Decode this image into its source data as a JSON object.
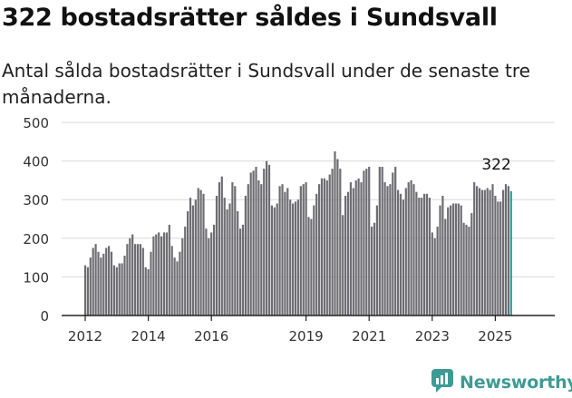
{
  "header": {
    "title": "322 bostadsrätter såldes i Sundsvall",
    "subtitle": "Antal sålda bostadsrätter i Sundsvall under de senaste tre månaderna."
  },
  "brand": {
    "name": "Newsworthy",
    "color": "#3d9b94",
    "icon": "newsworthy-logo-icon"
  },
  "chart_data": {
    "type": "bar",
    "title": "",
    "xlabel": "",
    "ylabel": "",
    "ylim": [
      0,
      500
    ],
    "yticks": [
      0,
      100,
      200,
      300,
      400,
      500
    ],
    "grid": true,
    "bar_color": "#6e6d72",
    "highlight_color": "#2e9d96",
    "x_start": "2012-01",
    "x_ticks": [
      {
        "label": "2012",
        "at": "2012-01"
      },
      {
        "label": "2014",
        "at": "2014-01"
      },
      {
        "label": "2016",
        "at": "2016-01"
      },
      {
        "label": "2019",
        "at": "2019-01"
      },
      {
        "label": "2021",
        "at": "2021-01"
      },
      {
        "label": "2023",
        "at": "2023-01"
      },
      {
        "label": "2025",
        "at": "2025-01"
      }
    ],
    "values": [
      130,
      125,
      150,
      175,
      185,
      165,
      150,
      160,
      175,
      180,
      165,
      130,
      125,
      135,
      135,
      155,
      185,
      200,
      210,
      185,
      185,
      185,
      175,
      125,
      120,
      165,
      205,
      210,
      215,
      205,
      215,
      215,
      235,
      180,
      150,
      140,
      165,
      200,
      230,
      270,
      305,
      285,
      300,
      330,
      325,
      315,
      225,
      200,
      215,
      235,
      310,
      345,
      360,
      305,
      275,
      290,
      345,
      335,
      270,
      225,
      235,
      310,
      340,
      370,
      375,
      385,
      350,
      340,
      380,
      400,
      390,
      285,
      280,
      290,
      335,
      340,
      320,
      330,
      300,
      290,
      295,
      300,
      335,
      340,
      345,
      255,
      250,
      285,
      315,
      340,
      355,
      355,
      350,
      365,
      380,
      425,
      405,
      380,
      260,
      310,
      320,
      345,
      330,
      350,
      355,
      345,
      375,
      380,
      385,
      230,
      240,
      285,
      385,
      385,
      345,
      335,
      340,
      370,
      385,
      325,
      315,
      300,
      330,
      345,
      350,
      340,
      320,
      305,
      305,
      315,
      315,
      305,
      215,
      200,
      230,
      285,
      310,
      250,
      280,
      285,
      290,
      290,
      290,
      285,
      240,
      235,
      230,
      265,
      345,
      335,
      330,
      325,
      325,
      330,
      325,
      340,
      310,
      295,
      295,
      325,
      340,
      335,
      322
    ],
    "annotation": {
      "text": "322"
    }
  }
}
